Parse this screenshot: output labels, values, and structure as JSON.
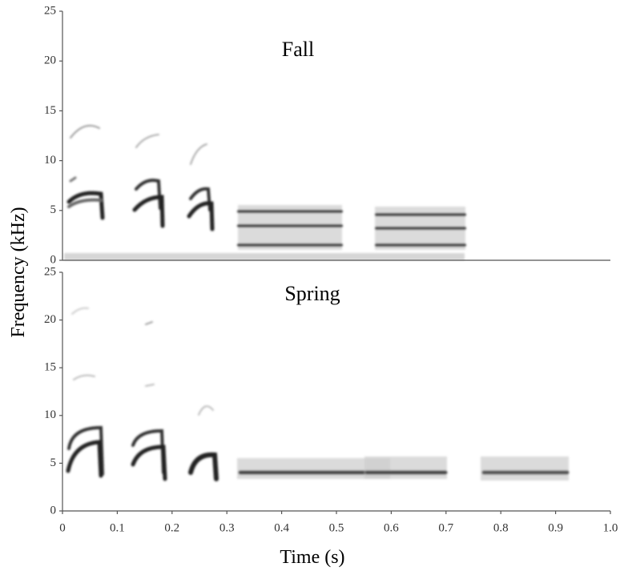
{
  "chart_data": [
    {
      "type": "spectrogram",
      "title": "Fall",
      "ylabel": "Frequency (kHz)",
      "xlim": [
        0,
        1
      ],
      "ylim": [
        0,
        25
      ],
      "yticks": [
        0,
        5,
        10,
        15,
        20,
        25
      ]
    },
    {
      "type": "spectrogram",
      "title": "Spring",
      "xlabel": "Time (s)",
      "xlim": [
        0,
        1
      ],
      "ylim": [
        0,
        25
      ],
      "yticks": [
        0,
        5,
        10,
        15,
        20,
        25
      ],
      "xticks": [
        0,
        0.1,
        0.2,
        0.3,
        0.4,
        0.5,
        0.6,
        0.7,
        0.8,
        0.9,
        {
          "value": 1,
          "label": "1.0"
        }
      ]
    }
  ]
}
